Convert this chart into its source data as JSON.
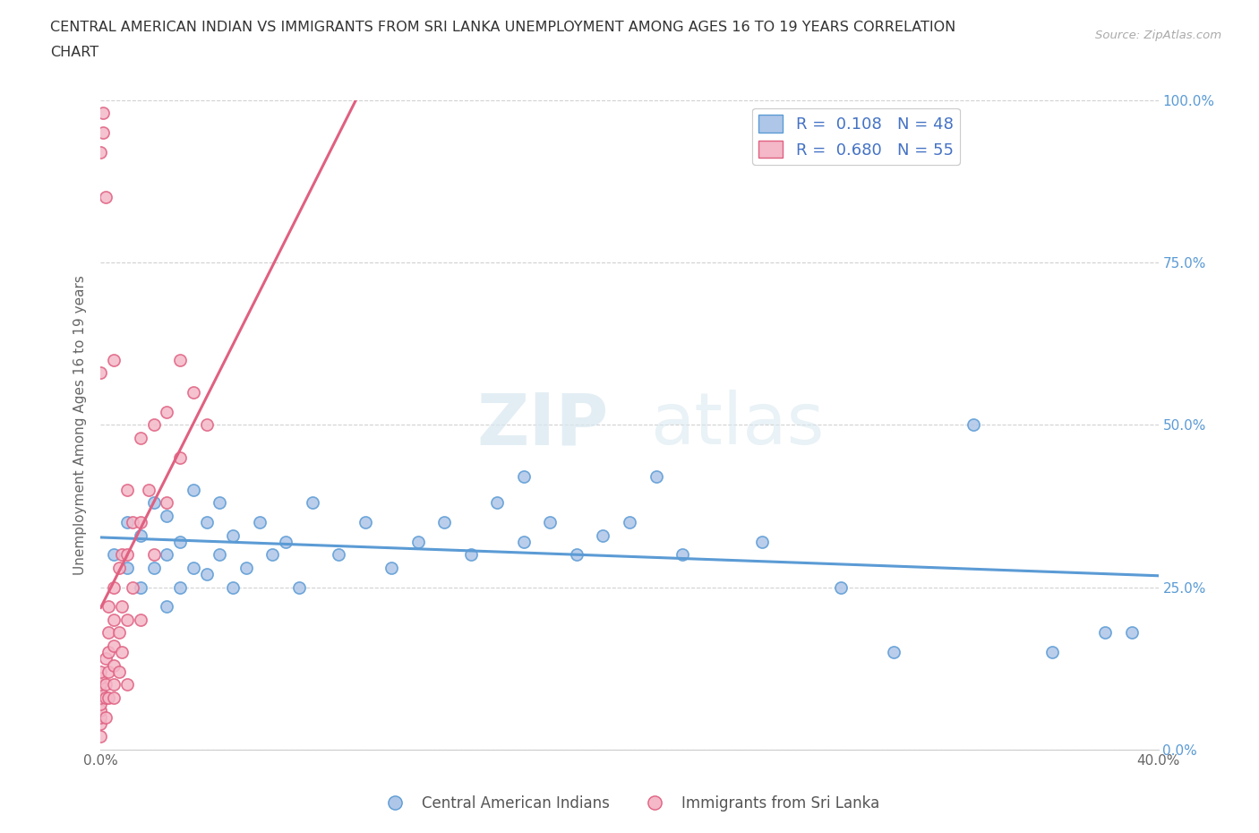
{
  "title_line1": "CENTRAL AMERICAN INDIAN VS IMMIGRANTS FROM SRI LANKA UNEMPLOYMENT AMONG AGES 16 TO 19 YEARS CORRELATION",
  "title_line2": "CHART",
  "source_text": "Source: ZipAtlas.com",
  "ylabel": "Unemployment Among Ages 16 to 19 years",
  "xlim": [
    0.0,
    0.4
  ],
  "ylim": [
    0.0,
    1.0
  ],
  "xticks": [
    0.0,
    0.4
  ],
  "xticklabels": [
    "0.0%",
    "40.0%"
  ],
  "yticks": [
    0.0,
    0.25,
    0.5,
    0.75,
    1.0
  ],
  "yticklabels": [
    "0.0%",
    "25.0%",
    "50.0%",
    "75.0%",
    "100.0%"
  ],
  "blue_color": "#aec6e8",
  "blue_edge": "#5b9bd5",
  "pink_color": "#f4b8c8",
  "pink_edge": "#e06080",
  "blue_line_color": "#5b9bd5",
  "pink_line_color": "#e06080",
  "R_blue": 0.108,
  "N_blue": 48,
  "R_pink": 0.68,
  "N_pink": 55,
  "legend_label_blue": "Central American Indians",
  "legend_label_pink": "Immigrants from Sri Lanka",
  "watermark_zip": "ZIP",
  "watermark_atlas": "atlas",
  "grid_color": "#cccccc",
  "background_color": "#ffffff",
  "fig_bg_color": "#ffffff",
  "blue_scatter_x": [
    0.005,
    0.01,
    0.01,
    0.015,
    0.015,
    0.02,
    0.02,
    0.025,
    0.025,
    0.025,
    0.03,
    0.03,
    0.035,
    0.035,
    0.04,
    0.04,
    0.045,
    0.045,
    0.05,
    0.05,
    0.055,
    0.06,
    0.065,
    0.07,
    0.075,
    0.08,
    0.09,
    0.1,
    0.11,
    0.12,
    0.13,
    0.14,
    0.15,
    0.16,
    0.17,
    0.18,
    0.19,
    0.2,
    0.22,
    0.25,
    0.28,
    0.3,
    0.33,
    0.36,
    0.38,
    0.39,
    0.16,
    0.21
  ],
  "blue_scatter_y": [
    0.3,
    0.28,
    0.35,
    0.25,
    0.33,
    0.28,
    0.38,
    0.22,
    0.3,
    0.36,
    0.25,
    0.32,
    0.28,
    0.4,
    0.27,
    0.35,
    0.3,
    0.38,
    0.25,
    0.33,
    0.28,
    0.35,
    0.3,
    0.32,
    0.25,
    0.38,
    0.3,
    0.35,
    0.28,
    0.32,
    0.35,
    0.3,
    0.38,
    0.32,
    0.35,
    0.3,
    0.33,
    0.35,
    0.3,
    0.32,
    0.25,
    0.15,
    0.5,
    0.15,
    0.18,
    0.18,
    0.42,
    0.42
  ],
  "pink_scatter_x": [
    0.0,
    0.0,
    0.0,
    0.0,
    0.0,
    0.0,
    0.0,
    0.0,
    0.0,
    0.0,
    0.002,
    0.002,
    0.002,
    0.002,
    0.003,
    0.003,
    0.003,
    0.003,
    0.003,
    0.005,
    0.005,
    0.005,
    0.005,
    0.005,
    0.005,
    0.007,
    0.007,
    0.007,
    0.008,
    0.008,
    0.008,
    0.01,
    0.01,
    0.01,
    0.01,
    0.012,
    0.012,
    0.015,
    0.015,
    0.015,
    0.018,
    0.02,
    0.02,
    0.025,
    0.025,
    0.03,
    0.03,
    0.035,
    0.04,
    0.005,
    0.0,
    0.0,
    0.001,
    0.001,
    0.002
  ],
  "pink_scatter_y": [
    0.02,
    0.04,
    0.05,
    0.06,
    0.07,
    0.08,
    0.09,
    0.1,
    0.11,
    0.12,
    0.05,
    0.08,
    0.1,
    0.14,
    0.08,
    0.12,
    0.15,
    0.18,
    0.22,
    0.08,
    0.1,
    0.13,
    0.16,
    0.2,
    0.25,
    0.12,
    0.18,
    0.28,
    0.15,
    0.22,
    0.3,
    0.1,
    0.2,
    0.3,
    0.4,
    0.25,
    0.35,
    0.2,
    0.35,
    0.48,
    0.4,
    0.3,
    0.5,
    0.38,
    0.52,
    0.45,
    0.6,
    0.55,
    0.5,
    0.6,
    0.58,
    0.92,
    0.95,
    0.98,
    0.85
  ]
}
